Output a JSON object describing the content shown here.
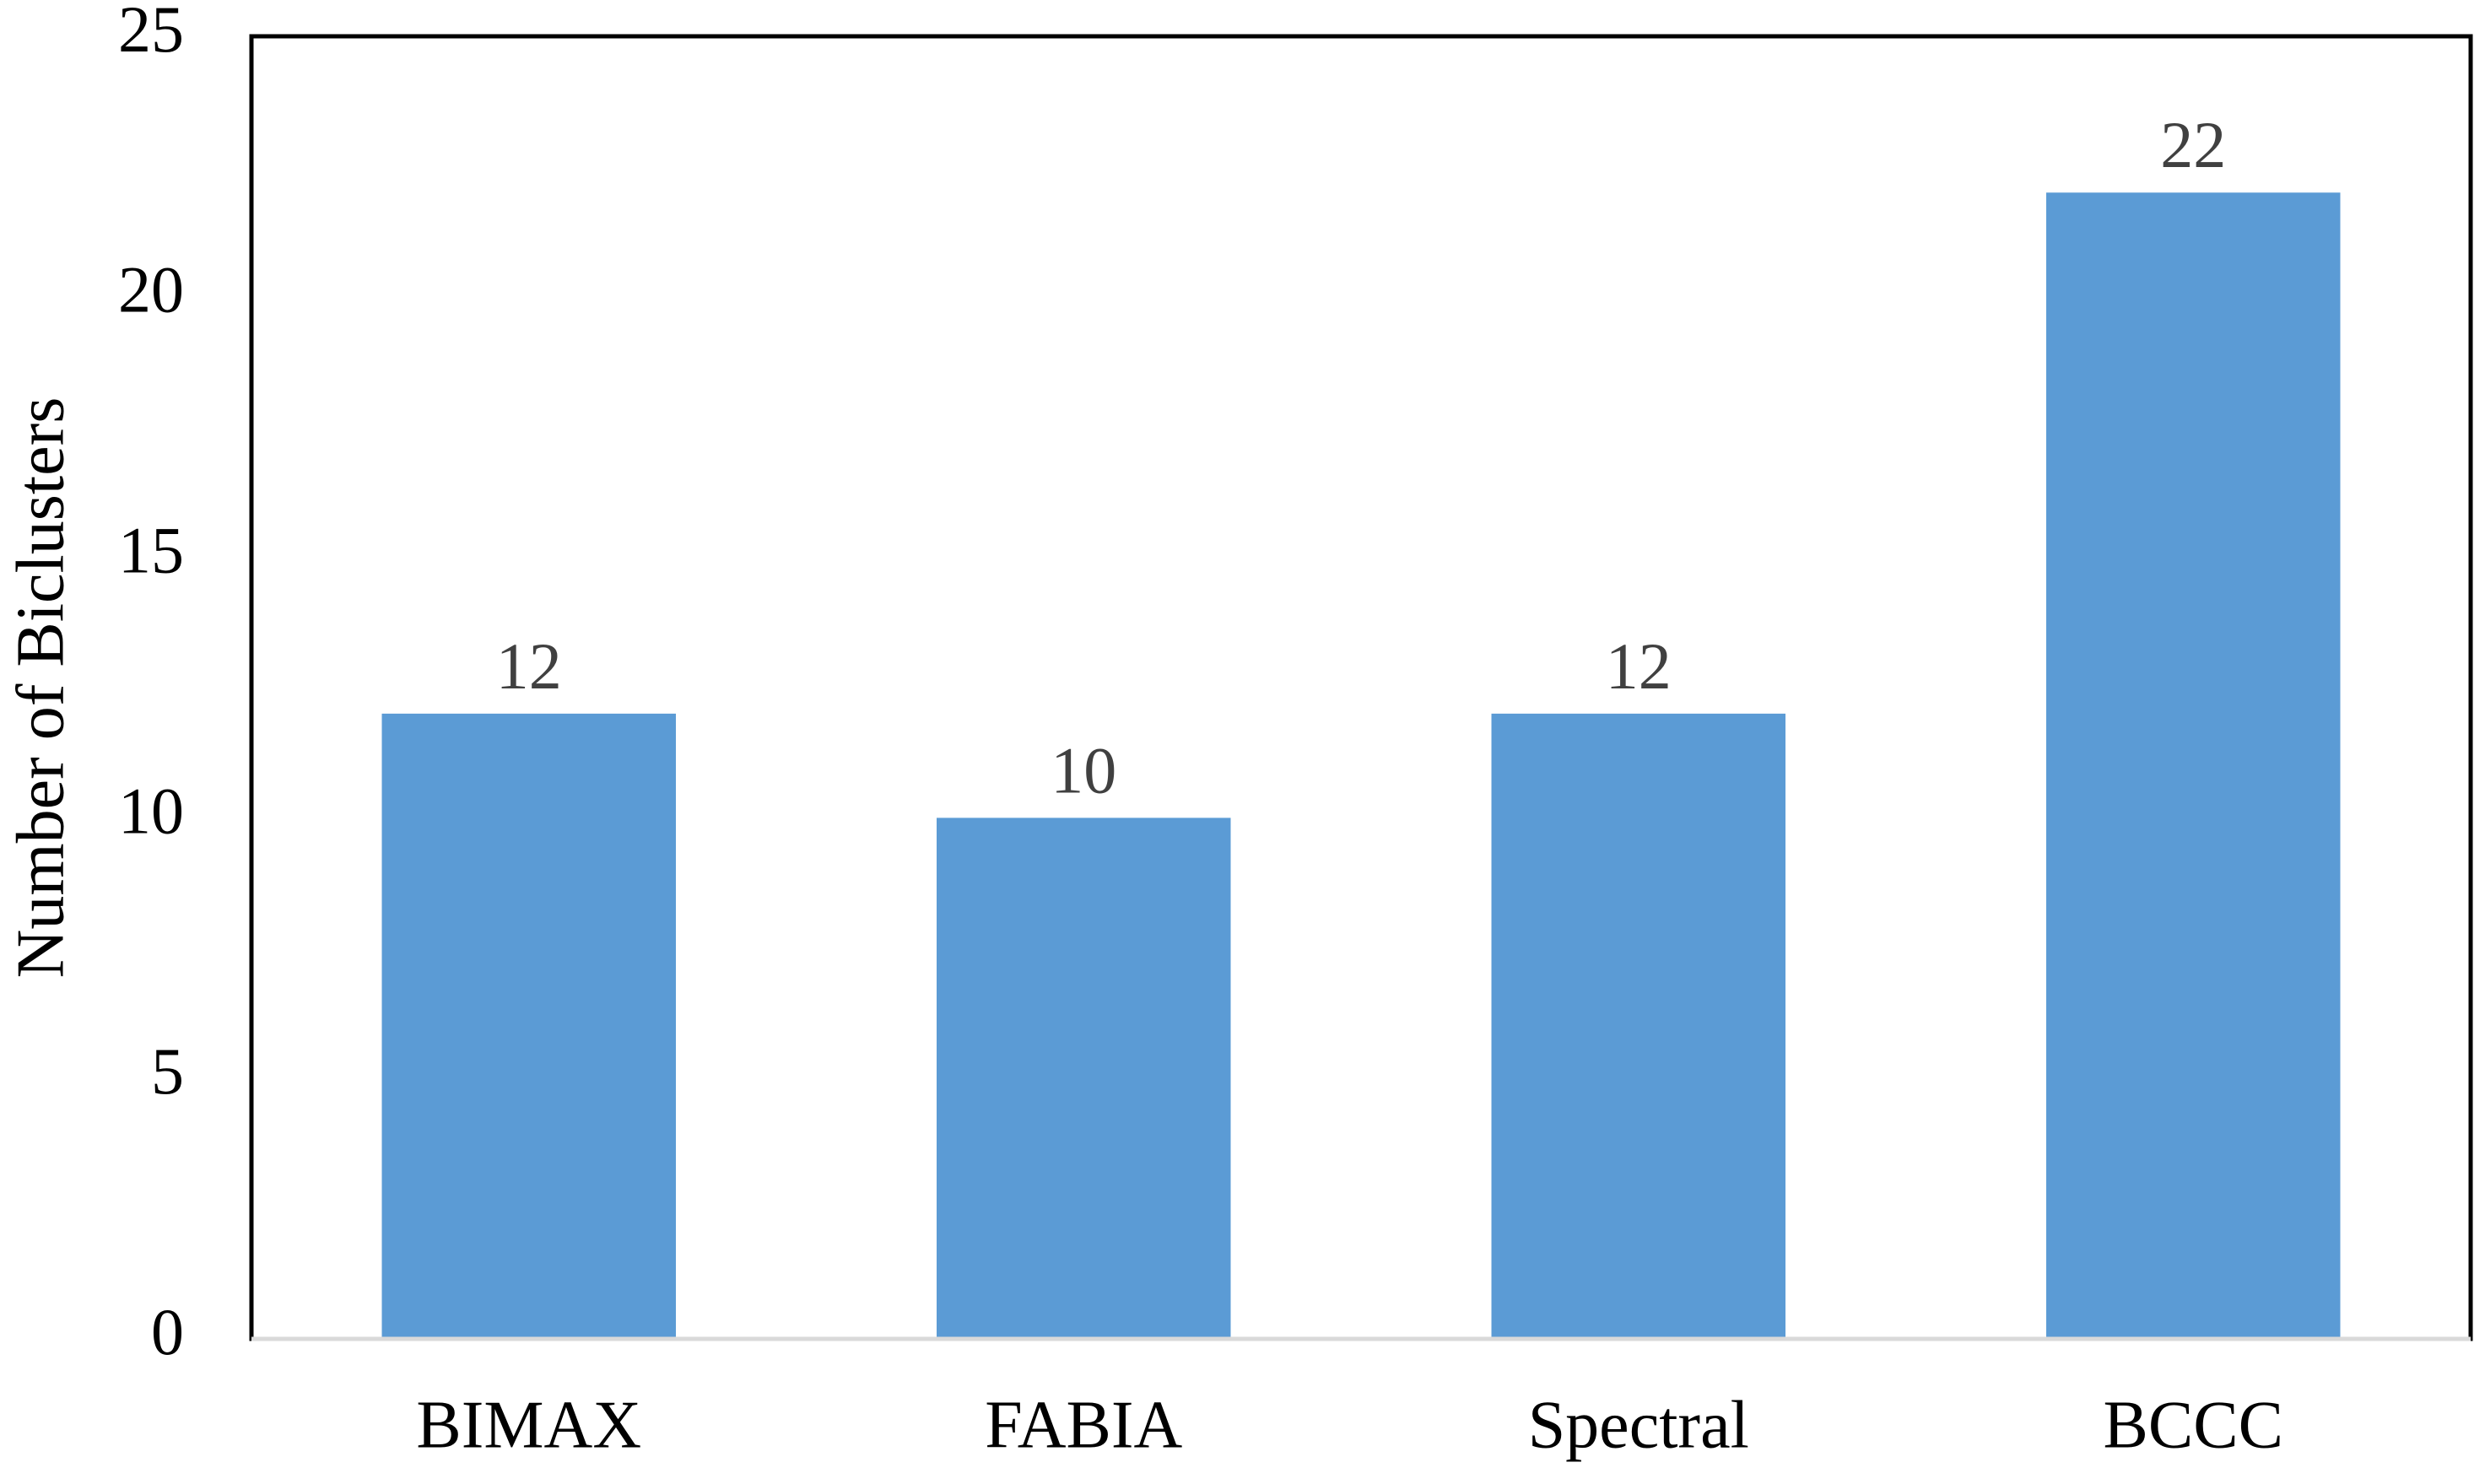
{
  "chart_data": {
    "type": "bar",
    "title": "",
    "xlabel": "",
    "ylabel": "Number of Biclusters",
    "categories": [
      "BIMAX",
      "FABIA",
      "Spectral",
      "BCCC"
    ],
    "values": [
      12,
      10,
      12,
      22
    ],
    "data_labels": [
      "12",
      "10",
      "12",
      "22"
    ],
    "ylim": [
      0,
      25
    ],
    "yticks": [
      0,
      5,
      10,
      15,
      20,
      25
    ],
    "grid": false,
    "legend": "none",
    "bar_color": "#5b9bd5",
    "data_label_color": "#404040"
  }
}
